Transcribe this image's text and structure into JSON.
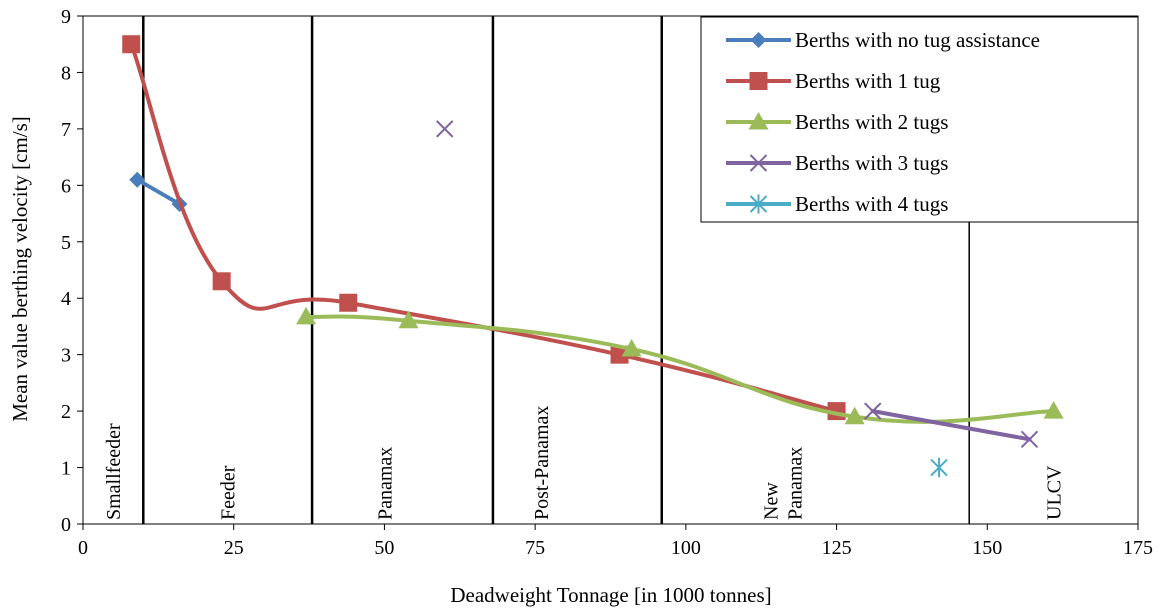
{
  "chart_data": {
    "type": "line",
    "xlabel": "Deadweight Tonnage [in 1000 tonnes]",
    "ylabel": "Mean value berthing velocity [cm/s]",
    "xlim": [
      0,
      175
    ],
    "ylim": [
      0,
      9
    ],
    "x_ticks": [
      "0",
      "25",
      "50",
      "75",
      "100",
      "125",
      "150",
      "175"
    ],
    "y_ticks": [
      "0",
      "1",
      "2",
      "3",
      "4",
      "5",
      "6",
      "7",
      "8",
      "9"
    ],
    "grid": false,
    "legend_position": "top-right",
    "series": [
      {
        "name": "Berths with no tug assistance",
        "color": "#4a7ebb",
        "marker": "diamond",
        "line": true,
        "points": [
          [
            9,
            6.1
          ],
          [
            16,
            5.67
          ]
        ]
      },
      {
        "name": "Berths with 1 tug",
        "color": "#c0504d",
        "marker": "square",
        "line": true,
        "points": [
          [
            8,
            8.5
          ],
          [
            23,
            4.3
          ],
          [
            44,
            3.92
          ],
          [
            89,
            3.0
          ],
          [
            125,
            2.0
          ]
        ]
      },
      {
        "name": "Berths with 2 tugs",
        "color": "#9bbb59",
        "marker": "triangle",
        "line": true,
        "points": [
          [
            37,
            3.67
          ],
          [
            54,
            3.6
          ],
          [
            91,
            3.1
          ],
          [
            128,
            1.9
          ],
          [
            161,
            2.0
          ]
        ]
      },
      {
        "name": "Berths with 3 tugs",
        "color": "#8064a2",
        "marker": "x",
        "line": true,
        "points": [
          [
            131,
            2.0
          ],
          [
            157,
            1.5
          ]
        ],
        "extra_points": [
          [
            60,
            7.0
          ]
        ]
      },
      {
        "name": "Berths with 4 tugs",
        "color": "#4bacc6",
        "marker": "star",
        "line": false,
        "points": [
          [
            142,
            1.0
          ]
        ]
      }
    ],
    "class_boundaries": [
      10,
      38,
      68,
      96,
      147
    ],
    "class_labels": [
      {
        "lines": [
          "Smallfeeder"
        ],
        "x": 5
      },
      {
        "lines": [
          "Feeder"
        ],
        "x": 24
      },
      {
        "lines": [
          "Panamax"
        ],
        "x": 50
      },
      {
        "lines": [
          "Post-Panamax"
        ],
        "x": 76
      },
      {
        "lines": [
          "New",
          "Panamax"
        ],
        "x": 116
      },
      {
        "lines": [
          "ULCV"
        ],
        "x": 161
      }
    ]
  }
}
